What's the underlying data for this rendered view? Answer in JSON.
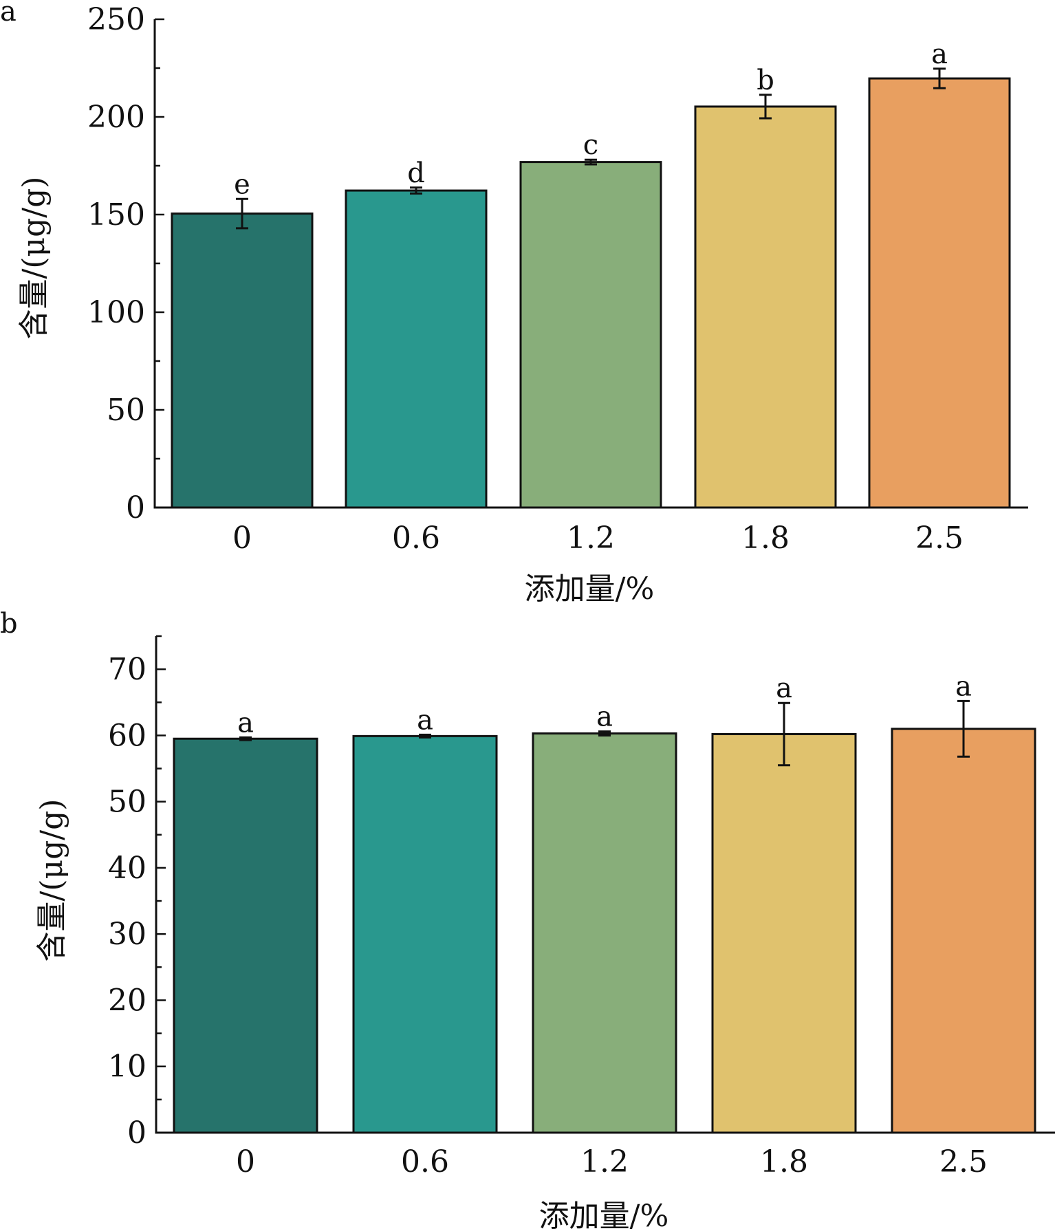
{
  "chart_data": [
    {
      "panel_label": "a",
      "type": "bar",
      "categories": [
        "0",
        "0.6",
        "1.2",
        "1.8",
        "2.5"
      ],
      "values": [
        150.5,
        162.3,
        176.9,
        205.3,
        219.7
      ],
      "errors": [
        7.5,
        1.5,
        1.2,
        6.0,
        5.0
      ],
      "significance_letters": [
        "e",
        "d",
        "c",
        "b",
        "a"
      ],
      "colors": [
        "#26736b",
        "#29988e",
        "#88ae7a",
        "#e0c26e",
        "#e89f60"
      ],
      "xlabel": "添加量/%",
      "ylabel": "含量/(μg/g)",
      "ylim": [
        0,
        250
      ],
      "yticks": [
        0,
        50,
        100,
        150,
        200,
        250
      ],
      "ytick_labels": [
        "0",
        "50",
        "100",
        "150",
        "200",
        "250"
      ],
      "minor_ytick_step": 25,
      "grid": false,
      "legend": "none"
    },
    {
      "panel_label": "b",
      "type": "bar",
      "categories": [
        "0",
        "0.6",
        "1.2",
        "1.8",
        "2.5"
      ],
      "values": [
        59.5,
        59.9,
        60.3,
        60.2,
        61.0
      ],
      "errors": [
        0.2,
        0.2,
        0.3,
        4.7,
        4.2
      ],
      "significance_letters": [
        "a",
        "a",
        "a",
        "a",
        "a"
      ],
      "colors": [
        "#26736b",
        "#29988e",
        "#88ae7a",
        "#e0c26e",
        "#e89f60"
      ],
      "xlabel": "添加量/%",
      "ylabel": "含量/(μg/g)",
      "ylim": [
        0,
        75
      ],
      "yticks": [
        0,
        10,
        20,
        30,
        40,
        50,
        60,
        70
      ],
      "ytick_labels": [
        "0",
        "10",
        "20",
        "30",
        "40",
        "50",
        "60",
        "70"
      ],
      "minor_ytick_step": 5,
      "grid": false,
      "legend": "none"
    }
  ]
}
